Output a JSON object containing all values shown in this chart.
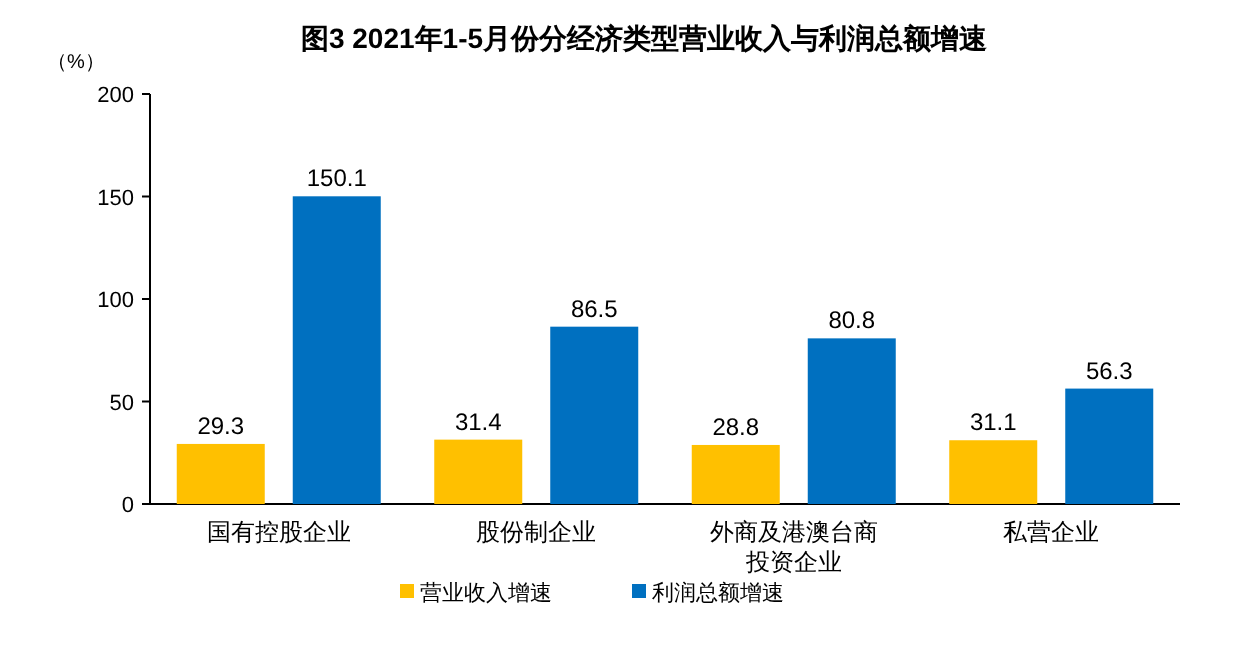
{
  "chart_data": {
    "type": "bar",
    "title": "图3  2021年1-5月份分经济类型营业收入与利润总额增速",
    "ylabel": "（%）",
    "categories": [
      "国有控股企业",
      "股份制企业",
      "外商及港澳台商投资企业",
      "私营企业"
    ],
    "series": [
      {
        "name": "营业收入增速",
        "color": "#ffc000",
        "values": [
          29.3,
          31.4,
          28.8,
          31.1
        ]
      },
      {
        "name": "利润总额增速",
        "color": "#0070c0",
        "values": [
          150.1,
          86.5,
          80.8,
          56.3
        ]
      }
    ],
    "ylim": [
      0,
      200
    ],
    "yticks": [
      0,
      50,
      100,
      150,
      200
    ],
    "data_labels": true,
    "legend": "bottom",
    "grid": false
  }
}
